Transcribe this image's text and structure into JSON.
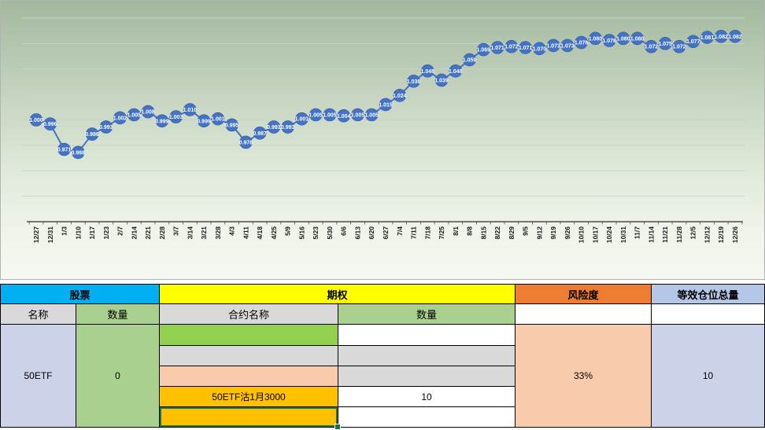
{
  "chart_data": {
    "type": "line",
    "x": [
      "12/27",
      "12/31",
      "1/3",
      "1/10",
      "1/17",
      "1/23",
      "2/7",
      "2/14",
      "2/21",
      "2/28",
      "3/7",
      "3/14",
      "3/21",
      "3/28",
      "4/3",
      "4/11",
      "4/18",
      "4/25",
      "5/9",
      "5/16",
      "5/23",
      "5/30",
      "6/6",
      "6/13",
      "6/20",
      "6/27",
      "7/4",
      "7/11",
      "7/18",
      "7/25",
      "8/1",
      "8/8",
      "8/15",
      "8/22",
      "8/29",
      "9/5",
      "9/12",
      "9/19",
      "9/26",
      "10/10",
      "10/17",
      "10/24",
      "10/31",
      "11/7",
      "11/14",
      "11/21",
      "11/28",
      "12/5",
      "12/12",
      "12/19",
      "12/26"
    ],
    "values": [
      1.0,
      0.996,
      0.971,
      0.968,
      0.986,
      0.993,
      1.002,
      1.005,
      1.008,
      0.999,
      1.003,
      1.01,
      0.999,
      1.001,
      0.995,
      0.978,
      0.987,
      0.993,
      0.993,
      1.001,
      1.005,
      1.005,
      1.004,
      1.005,
      1.005,
      1.015,
      1.024,
      1.038,
      1.048,
      1.039,
      1.048,
      1.059,
      1.069,
      1.071,
      1.072,
      1.071,
      1.07,
      1.073,
      1.073,
      1.076,
      1.08,
      1.078,
      1.08,
      1.08,
      1.072,
      1.075,
      1.072,
      1.077,
      1.081,
      1.082,
      1.082
    ],
    "ylim": [
      0.9,
      1.11
    ],
    "grid": true,
    "gridline_step": 0.025,
    "line_color": "#4472C4",
    "marker_color": "#4472C4",
    "data_label_color": "#FFFFFF",
    "axis_label_color": "#1a1a1a"
  },
  "table": {
    "header_stock": "股票",
    "header_option": "期权",
    "header_risk": "风险度",
    "header_equivalent": "等效仓位总量",
    "sub_name": "名称",
    "sub_qty_stock": "数量",
    "sub_contract_name": "合约名称",
    "sub_qty_option": "数量",
    "stock_name": "50ETF",
    "stock_qty": "0",
    "risk_value": "33%",
    "equivalent_value": "10",
    "colors": {
      "stock_header": "#00B0F0",
      "option_header": "#FFFF00",
      "risk_header": "#ED7D31",
      "equivalent_header": "#B4C7E7",
      "label_gray": "#D9D9D9",
      "qty_green": "#A9D08E",
      "lavender": "#CCD2E8",
      "peach": "#F8CBAD",
      "amber": "#FFC000",
      "bright_green": "#92D050",
      "selection_green": "#1F7244"
    },
    "contracts": [
      {
        "name": "",
        "qty": "",
        "name_bg": "#92D050",
        "qty_bg": "#FFFFFF"
      },
      {
        "name": "",
        "qty": "",
        "name_bg": "#D9D9D9",
        "qty_bg": "#D9D9D9"
      },
      {
        "name": "",
        "qty": "",
        "name_bg": "#F8CBAD",
        "qty_bg": "#D9D9D9"
      },
      {
        "name": "50ETF沽1月3000",
        "qty": "10",
        "name_bg": "#FFC000",
        "qty_bg": "#FFFFFF"
      },
      {
        "name": "",
        "qty": "",
        "name_bg": "#FFC000",
        "qty_bg": "#FFFFFF"
      }
    ]
  }
}
